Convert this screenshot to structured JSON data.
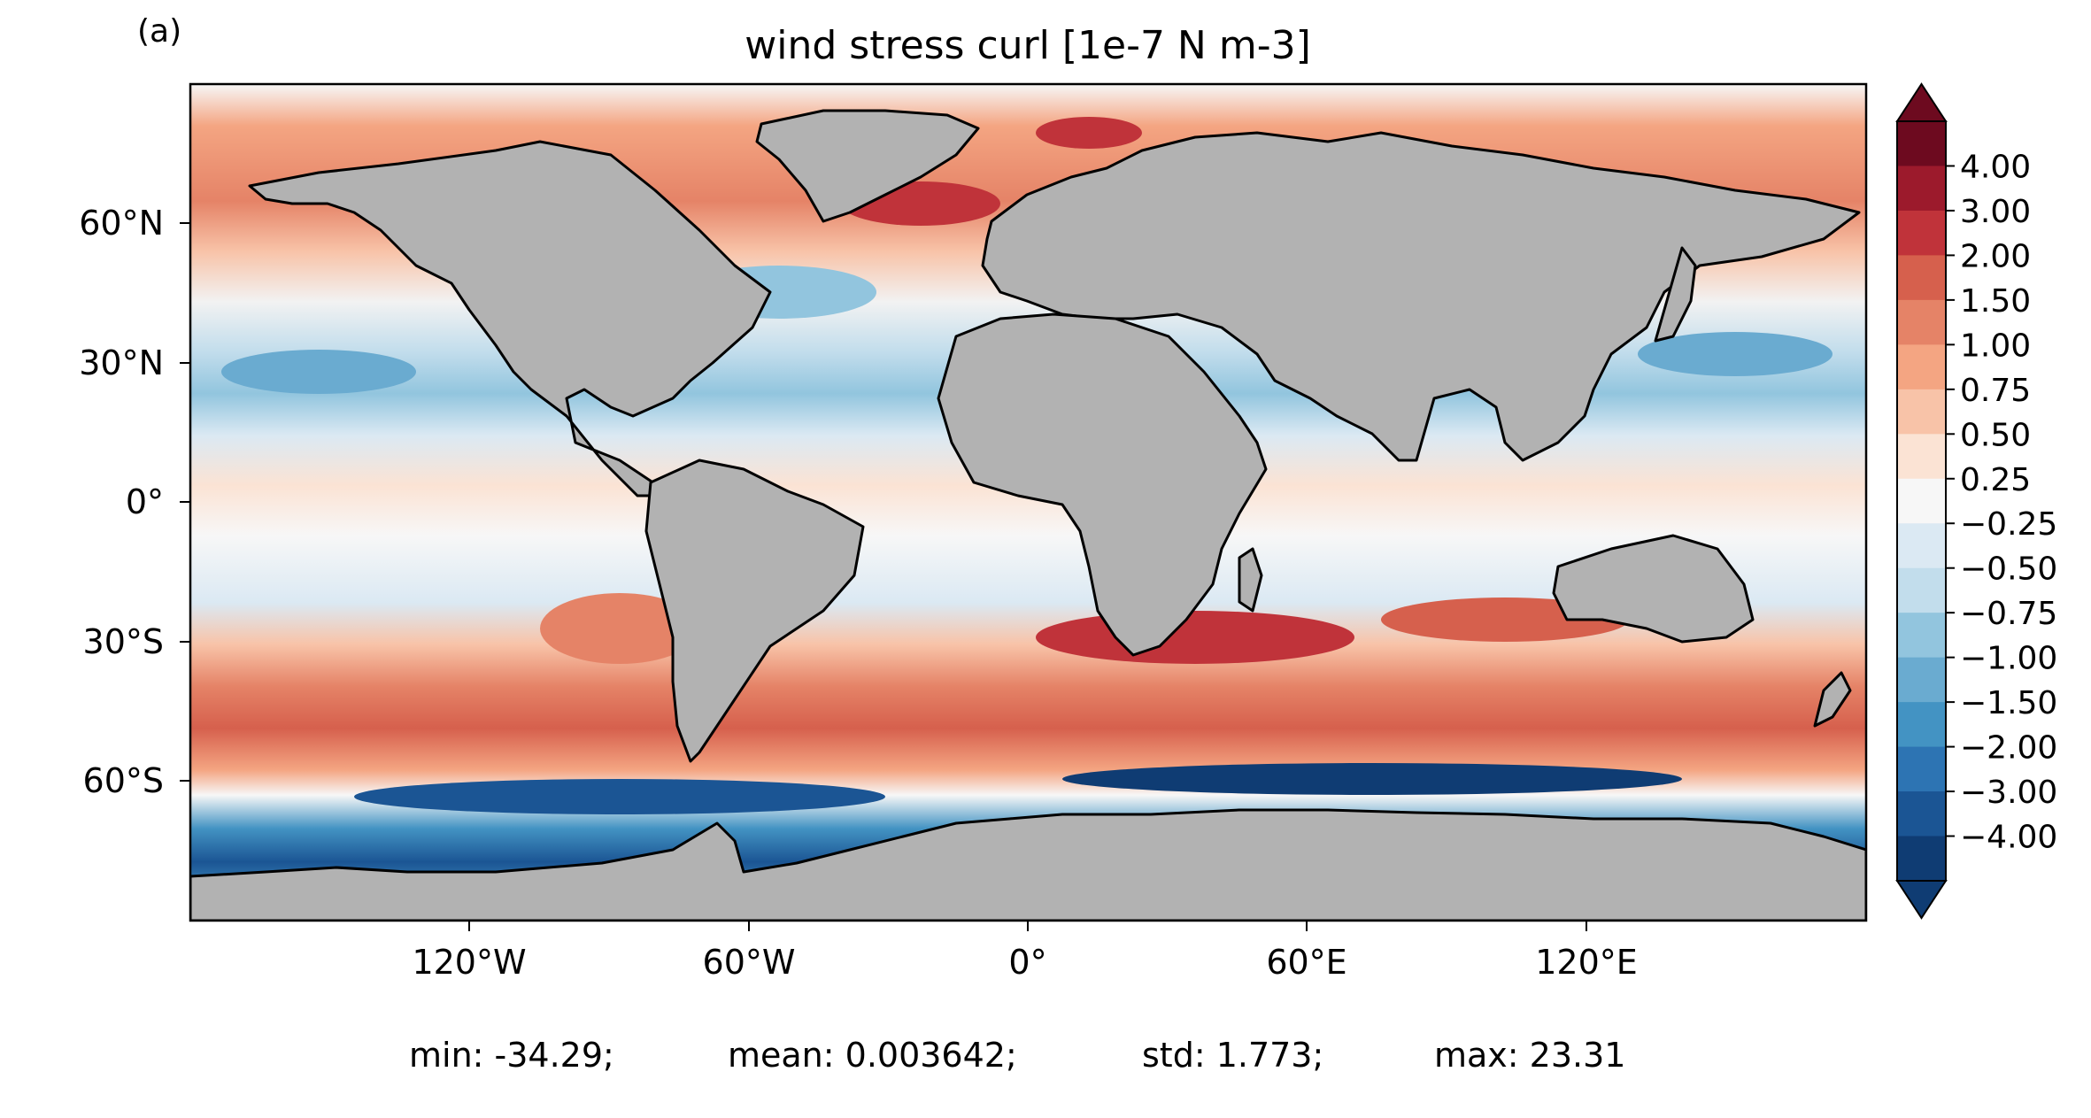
{
  "figure": {
    "panel_label": "(a)",
    "title": "wind stress curl [1e-7 N m-3]",
    "x_ticks": [
      "120°W",
      "60°W",
      "0°",
      "60°E",
      "120°E"
    ],
    "y_ticks": [
      "60°N",
      "30°N",
      "0°",
      "30°S",
      "60°S"
    ],
    "colorbar": {
      "labels": [
        "4.00",
        "3.00",
        "2.00",
        "1.50",
        "1.00",
        "0.75",
        "0.50",
        "0.25",
        "−0.25",
        "−0.50",
        "−0.75",
        "−1.00",
        "−1.50",
        "−2.00",
        "−3.00",
        "−4.00"
      ],
      "colors": [
        "#6d0a1f",
        "#9c1a2c",
        "#c0333a",
        "#d6604d",
        "#e58367",
        "#f4a582",
        "#f8c3a8",
        "#fbe3d4",
        "#f7f7f7",
        "#dbe9f3",
        "#c2ddec",
        "#92c5de",
        "#6aabd0",
        "#4393c3",
        "#2d74b3",
        "#1b5594",
        "#0f3c73"
      ],
      "extend": "both"
    },
    "land_color": "#b2b2b2",
    "stats": {
      "min": "min: -34.29;",
      "mean": "mean: 0.003642;",
      "std": "std: 1.773;",
      "max": "max: 23.31"
    }
  }
}
